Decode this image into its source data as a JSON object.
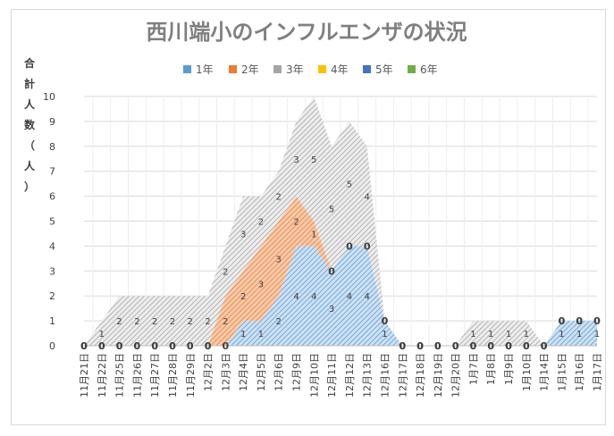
{
  "chart_data": {
    "type": "area",
    "stacked": true,
    "title": "西川端小のインフルエンザの状況",
    "ylabel": "合計人数（人）",
    "xlabel": "",
    "ylim": [
      0,
      10
    ],
    "ytick_labels": [
      "0",
      "1",
      "2",
      "3",
      "4",
      "5",
      "6",
      "7",
      "8",
      "9",
      "10"
    ],
    "grid": true,
    "legend_position": "top",
    "categories": [
      "11月21日",
      "11月22日",
      "11月25日",
      "11月26日",
      "11月27日",
      "11月28日",
      "11月29日",
      "12月2日",
      "12月3日",
      "12月4日",
      "12月5日",
      "12月6日",
      "12月9日",
      "12月10日",
      "12月11日",
      "12月12日",
      "12月13日",
      "12月16日",
      "12月17日",
      "12月18日",
      "12月19日",
      "12月20日",
      "1月7日",
      "1月8日",
      "1月9日",
      "1月10日",
      "1月14日",
      "1月15日",
      "1月16日",
      "1月17日"
    ],
    "series": [
      {
        "name": "1年",
        "color": "#5b9bd5",
        "values": [
          0,
          0,
          0,
          0,
          0,
          0,
          0,
          0,
          0,
          1,
          1,
          2,
          4,
          4,
          3,
          4,
          4,
          1,
          0,
          0,
          0,
          0,
          0,
          0,
          0,
          0,
          0,
          1,
          1,
          1
        ]
      },
      {
        "name": "2年",
        "color": "#ed7d31",
        "values": [
          0,
          0,
          0,
          0,
          0,
          0,
          0,
          0,
          2,
          2,
          3,
          3,
          2,
          1,
          0,
          0,
          0,
          0,
          0,
          0,
          0,
          0,
          0,
          0,
          0,
          0,
          0,
          0,
          0,
          0
        ]
      },
      {
        "name": "3年",
        "color": "#a5a5a5",
        "values": [
          0,
          1,
          2,
          2,
          2,
          2,
          2,
          2,
          2,
          3,
          2,
          2,
          3,
          5,
          5,
          5,
          4,
          0,
          0,
          0,
          0,
          0,
          1,
          1,
          1,
          1,
          0,
          0,
          0,
          0
        ]
      },
      {
        "name": "4年",
        "color": "#ffc000",
        "values": [
          0,
          0,
          0,
          0,
          0,
          0,
          0,
          0,
          0,
          0,
          0,
          0,
          0,
          0,
          0,
          0,
          0,
          0,
          0,
          0,
          0,
          0,
          0,
          0,
          0,
          0,
          0,
          0,
          0,
          0
        ]
      },
      {
        "name": "5年",
        "color": "#4472c4",
        "values": [
          0,
          0,
          0,
          0,
          0,
          0,
          0,
          0,
          0,
          0,
          0,
          0,
          0,
          0,
          0,
          0,
          0,
          0,
          0,
          0,
          0,
          0,
          0,
          0,
          0,
          0,
          0,
          0,
          0,
          0
        ]
      },
      {
        "name": "6年",
        "color": "#70ad47",
        "values": [
          0,
          0,
          0,
          0,
          0,
          0,
          0,
          0,
          0,
          0,
          0,
          0,
          0,
          0,
          0,
          0,
          0,
          0,
          0,
          0,
          0,
          0,
          0,
          0,
          0,
          0,
          0,
          0,
          0,
          0
        ]
      }
    ]
  }
}
